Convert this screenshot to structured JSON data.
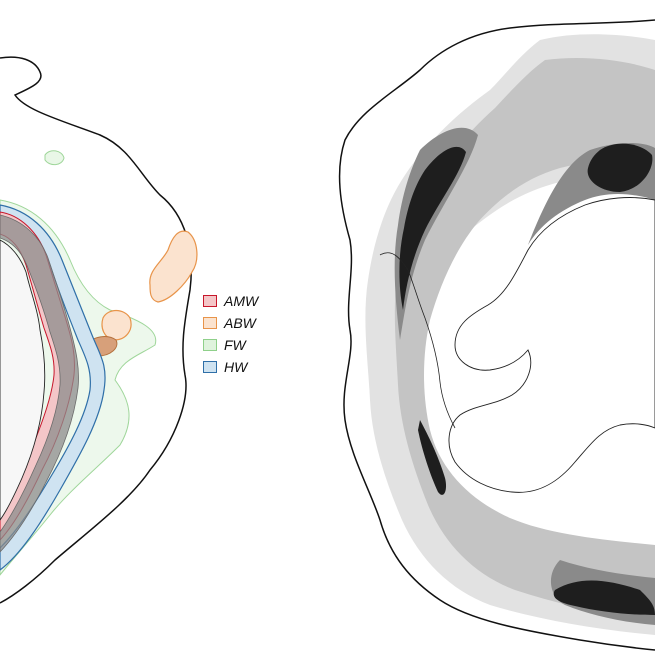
{
  "figure": {
    "left_panel": {
      "legend": [
        {
          "label": "AMW",
          "fill": "#f4c6c8",
          "stroke": "#c7162b"
        },
        {
          "label": "ABW",
          "fill": "#fbe3cf",
          "stroke": "#e8944a"
        },
        {
          "label": "FW",
          "fill": "#dff3dd",
          "stroke": "#8fd08a"
        },
        {
          "label": "HW",
          "fill": "#cfe3f1",
          "stroke": "#2f6fa8"
        }
      ]
    },
    "right_panel": {
      "shade_levels": [
        "#e2e2e2",
        "#c4c4c4",
        "#8a8a8a",
        "#1e1e1e"
      ]
    }
  }
}
